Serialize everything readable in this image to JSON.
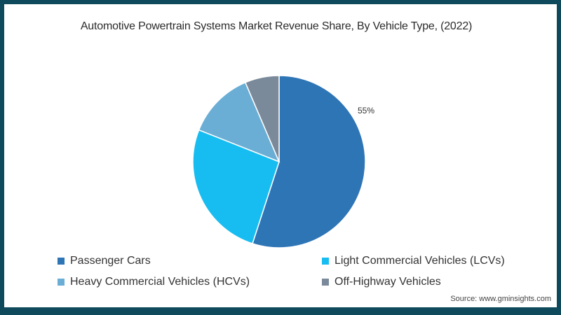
{
  "title": "Automotive Powertrain Systems Market Revenue Share, By Vehicle Type, (2022)",
  "source": "Source: www.gminsights.com",
  "labels": {
    "passenger_cars_pct": "55%"
  },
  "legend": [
    {
      "label": "Passenger Cars",
      "color": "#2e75b6"
    },
    {
      "label": "Light Commercial Vehicles (LCVs)",
      "color": "#17bdf0"
    },
    {
      "label": "Heavy Commercial Vehicles (HCVs)",
      "color": "#6aaed6"
    },
    {
      "label": "Off-Highway Vehicles",
      "color": "#7b8a9a"
    }
  ],
  "chart_data": {
    "type": "pie",
    "title": "Automotive Powertrain Systems Market Revenue Share, By Vehicle Type, (2022)",
    "categories": [
      "Passenger Cars",
      "Light Commercial Vehicles (LCVs)",
      "Heavy Commercial Vehicles (HCVs)",
      "Off-Highway Vehicles"
    ],
    "values": [
      55,
      26,
      12.6,
      6.4
    ],
    "colors": [
      "#2e75b6",
      "#17bdf0",
      "#6aaed6",
      "#7b8a9a"
    ],
    "data_labels": {
      "Passenger Cars": "55%"
    },
    "start_angle": "12 o'clock, clockwise",
    "legend_position": "bottom",
    "source": "Source: www.gminsights.com"
  }
}
